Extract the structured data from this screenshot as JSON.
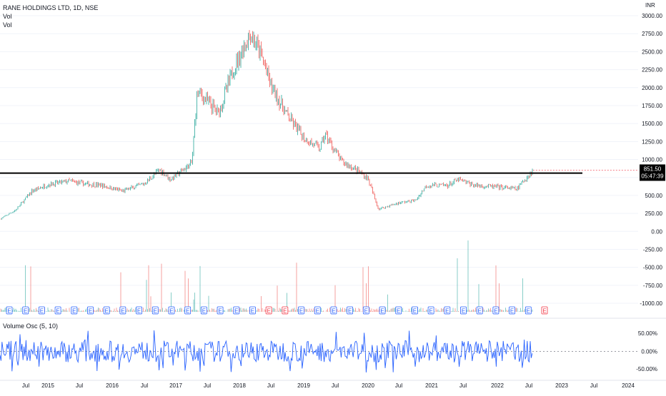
{
  "symbol": {
    "title": "RANE HOLDINGS LTD, 1D, NSE",
    "vol_label_1": "Vol",
    "vol_label_2": "Vol",
    "currency": "INR"
  },
  "price_axis": {
    "ticks": [
      "3000.00",
      "2750.00",
      "2500.00",
      "2250.00",
      "2000.00",
      "1750.00",
      "1500.00",
      "1250.00",
      "1000.00",
      "750.00",
      "500.00",
      "250.00",
      "0.00",
      "-250.00",
      "-500.00",
      "-750.00",
      "-1000.00"
    ],
    "last_price": "851.50",
    "countdown": "05:47:39",
    "last_price_color": "#f23645"
  },
  "osc_axis": {
    "ticks": [
      "50.00%",
      "0.00%",
      "-50.00%"
    ]
  },
  "indicator": {
    "label": "Volume Osc (5, 10)"
  },
  "time_axis": {
    "labels": [
      "Jul",
      "2015",
      "Jul",
      "2016",
      "Jul",
      "2017",
      "Jul",
      "2018",
      "Jul",
      "2019",
      "Jul",
      "2020",
      "Jul",
      "2021",
      "Jul",
      "2022",
      "Jul",
      "2023",
      "Jul",
      "2024"
    ]
  },
  "colors": {
    "up": "#26a69a",
    "down": "#ef5350",
    "osc_line": "#2962ff",
    "support_line": "#000000",
    "grid": "#f0f3fa"
  },
  "earnings_markers": {
    "label": "E",
    "count": 34
  },
  "chart_data": {
    "type": "candlestick",
    "title": "RANE HOLDINGS LTD, 1D, NSE",
    "ylabel": "INR",
    "ylim": [
      -1100,
      3050
    ],
    "x_range": [
      "2014-05",
      "2024-07"
    ],
    "price_path": [
      {
        "date": "2014-05",
        "close": 170
      },
      {
        "date": "2014-08",
        "close": 300
      },
      {
        "date": "2014-11",
        "close": 560
      },
      {
        "date": "2015-02",
        "close": 650
      },
      {
        "date": "2015-06",
        "close": 700
      },
      {
        "date": "2015-09",
        "close": 660
      },
      {
        "date": "2015-12",
        "close": 640
      },
      {
        "date": "2016-04",
        "close": 560
      },
      {
        "date": "2016-08",
        "close": 660
      },
      {
        "date": "2016-11",
        "close": 860
      },
      {
        "date": "2017-01",
        "close": 720
      },
      {
        "date": "2017-05",
        "close": 950
      },
      {
        "date": "2017-06",
        "close": 1950
      },
      {
        "date": "2017-10",
        "close": 1650
      },
      {
        "date": "2018-01",
        "close": 2300
      },
      {
        "date": "2018-04",
        "close": 2750
      },
      {
        "date": "2018-06",
        "close": 2450
      },
      {
        "date": "2018-08",
        "close": 2000
      },
      {
        "date": "2018-11",
        "close": 1600
      },
      {
        "date": "2019-02",
        "close": 1300
      },
      {
        "date": "2019-05",
        "close": 1150
      },
      {
        "date": "2019-06",
        "close": 1350
      },
      {
        "date": "2019-09",
        "close": 980
      },
      {
        "date": "2019-12",
        "close": 850
      },
      {
        "date": "2020-02",
        "close": 740
      },
      {
        "date": "2020-04",
        "close": 310
      },
      {
        "date": "2020-08",
        "close": 400
      },
      {
        "date": "2020-11",
        "close": 430
      },
      {
        "date": "2021-01",
        "close": 640
      },
      {
        "date": "2021-05",
        "close": 640
      },
      {
        "date": "2021-07",
        "close": 720
      },
      {
        "date": "2021-10",
        "close": 640
      },
      {
        "date": "2022-02",
        "close": 620
      },
      {
        "date": "2022-06",
        "close": 590
      },
      {
        "date": "2022-09",
        "close": 851.5
      }
    ],
    "support_level": 810,
    "last_close": 851.5,
    "volume_osc": {
      "name": "Volume Osc (5, 10)",
      "ylim": [
        -75,
        75
      ],
      "zero_line": true
    }
  }
}
